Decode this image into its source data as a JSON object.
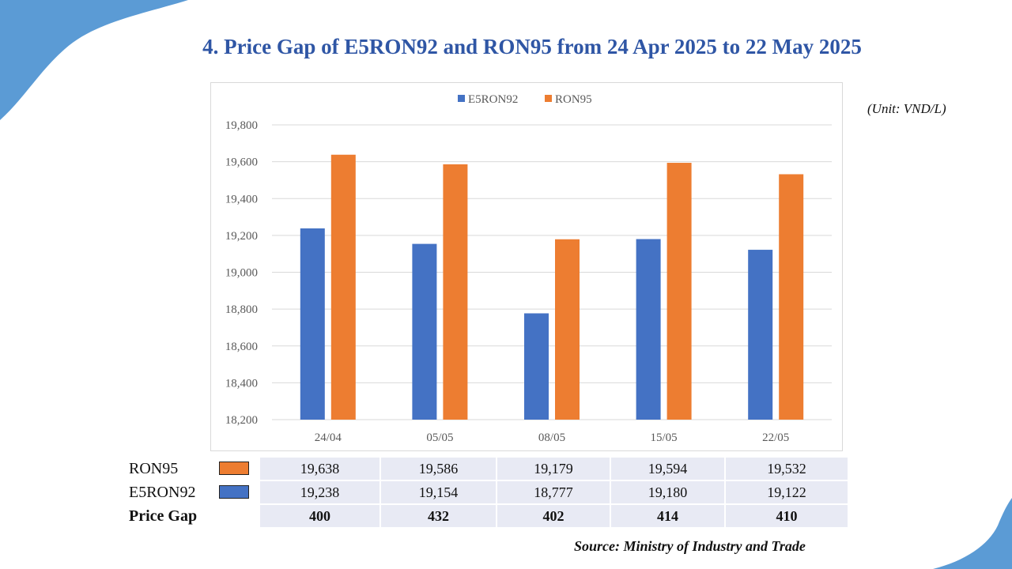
{
  "page": {
    "title": "4. Price Gap of  E5RON92 and RON95 from 24 Apr 2025 to 22 May 2025",
    "unit": "(Unit: VND/L)",
    "source": "Source: Ministry of Industry and Trade"
  },
  "colors": {
    "e5ron92": "#4472c4",
    "ron95": "#ed7d31",
    "accent": "#5b9bd5",
    "title": "#2f56a5"
  },
  "chart_data": {
    "type": "bar",
    "categories": [
      "24/04",
      "05/05",
      "08/05",
      "15/05",
      "22/05"
    ],
    "series": [
      {
        "name": "E5RON92",
        "values": [
          19238,
          19154,
          18777,
          19180,
          19122
        ]
      },
      {
        "name": "RON95",
        "values": [
          19638,
          19586,
          19179,
          19594,
          19532
        ]
      }
    ],
    "ylim": [
      18200,
      19800
    ],
    "yticks": [
      18200,
      18400,
      18600,
      18800,
      19000,
      19200,
      19400,
      19600,
      19800
    ],
    "ytick_labels": [
      "18,200",
      "18,400",
      "18,600",
      "18,800",
      "19,000",
      "19,200",
      "19,400",
      "19,600",
      "19,800"
    ],
    "legend": "top-center",
    "grid": true
  },
  "table": {
    "rows": [
      {
        "label": "RON95",
        "swatch": "ron95",
        "values": [
          "19,638",
          "19,586",
          "19,179",
          "19,594",
          "19,532"
        ]
      },
      {
        "label": "E5RON92",
        "swatch": "e5ron92",
        "values": [
          "19,238",
          "19,154",
          "18,777",
          "19,180",
          "19,122"
        ]
      },
      {
        "label": "Price Gap",
        "values": [
          "400",
          "432",
          "402",
          "414",
          "410"
        ]
      }
    ]
  }
}
